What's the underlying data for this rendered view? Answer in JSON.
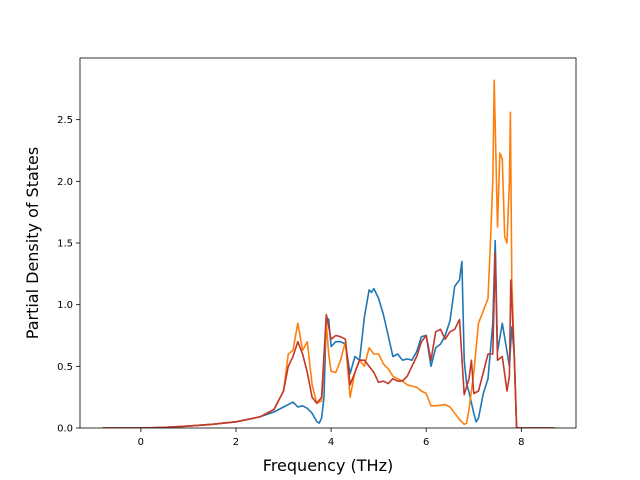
{
  "chart_data": {
    "type": "line",
    "title": "",
    "xlabel": "Frequency (THz)",
    "ylabel": "Partial Density of States",
    "xlim": [
      -1.28,
      9.15
    ],
    "ylim": [
      0,
      3.0
    ],
    "xticks": [
      0,
      2,
      4,
      6,
      8
    ],
    "yticks": [
      0.0,
      0.5,
      1.0,
      1.5,
      2.0,
      2.5
    ],
    "xtick_labels": [
      "0",
      "2",
      "4",
      "6",
      "8"
    ],
    "ytick_labels": [
      "0.0",
      "0.5",
      "1.0",
      "1.5",
      "2.0",
      "2.5"
    ],
    "grid": false,
    "legend": "none",
    "series": [
      {
        "color": "#1f77b4",
        "points": [
          [
            -0.8,
            0
          ],
          [
            0,
            0
          ],
          [
            0.5,
            0.005
          ],
          [
            1,
            0.015
          ],
          [
            1.5,
            0.03
          ],
          [
            2,
            0.05
          ],
          [
            2.5,
            0.09
          ],
          [
            2.8,
            0.13
          ],
          [
            3.0,
            0.17
          ],
          [
            3.1,
            0.19
          ],
          [
            3.2,
            0.21
          ],
          [
            3.3,
            0.17
          ],
          [
            3.4,
            0.18
          ],
          [
            3.5,
            0.16
          ],
          [
            3.6,
            0.12
          ],
          [
            3.7,
            0.05
          ],
          [
            3.75,
            0.04
          ],
          [
            3.8,
            0.08
          ],
          [
            3.85,
            0.25
          ],
          [
            3.9,
            0.9
          ],
          [
            3.95,
            0.88
          ],
          [
            4.0,
            0.66
          ],
          [
            4.1,
            0.7
          ],
          [
            4.2,
            0.7
          ],
          [
            4.3,
            0.68
          ],
          [
            4.4,
            0.44
          ],
          [
            4.5,
            0.58
          ],
          [
            4.6,
            0.55
          ],
          [
            4.7,
            0.9
          ],
          [
            4.8,
            1.12
          ],
          [
            4.85,
            1.1
          ],
          [
            4.9,
            1.13
          ],
          [
            5.0,
            1.05
          ],
          [
            5.1,
            0.92
          ],
          [
            5.2,
            0.75
          ],
          [
            5.3,
            0.58
          ],
          [
            5.4,
            0.6
          ],
          [
            5.5,
            0.55
          ],
          [
            5.6,
            0.56
          ],
          [
            5.7,
            0.55
          ],
          [
            5.8,
            0.62
          ],
          [
            5.9,
            0.74
          ],
          [
            6.0,
            0.75
          ],
          [
            6.1,
            0.5
          ],
          [
            6.2,
            0.65
          ],
          [
            6.3,
            0.68
          ],
          [
            6.4,
            0.75
          ],
          [
            6.5,
            0.87
          ],
          [
            6.6,
            1.15
          ],
          [
            6.7,
            1.2
          ],
          [
            6.75,
            1.35
          ],
          [
            6.8,
            0.55
          ],
          [
            6.85,
            0.36
          ],
          [
            6.9,
            0.29
          ],
          [
            7.0,
            0.12
          ],
          [
            7.05,
            0.05
          ],
          [
            7.1,
            0.08
          ],
          [
            7.2,
            0.28
          ],
          [
            7.3,
            0.4
          ],
          [
            7.4,
            0.85
          ],
          [
            7.45,
            1.52
          ],
          [
            7.5,
            0.62
          ],
          [
            7.6,
            0.85
          ],
          [
            7.7,
            0.62
          ],
          [
            7.75,
            0.5
          ],
          [
            7.8,
            0.82
          ],
          [
            7.85,
            0.6
          ],
          [
            7.9,
            0.0
          ],
          [
            8.7,
            0
          ]
        ]
      },
      {
        "color": "#ff7f0e",
        "points": [
          [
            -0.8,
            0
          ],
          [
            0,
            0
          ],
          [
            0.5,
            0.005
          ],
          [
            1,
            0.015
          ],
          [
            1.5,
            0.03
          ],
          [
            2,
            0.05
          ],
          [
            2.5,
            0.09
          ],
          [
            2.8,
            0.15
          ],
          [
            3.0,
            0.3
          ],
          [
            3.1,
            0.6
          ],
          [
            3.2,
            0.63
          ],
          [
            3.3,
            0.85
          ],
          [
            3.4,
            0.63
          ],
          [
            3.5,
            0.7
          ],
          [
            3.6,
            0.35
          ],
          [
            3.7,
            0.2
          ],
          [
            3.8,
            0.22
          ],
          [
            3.9,
            0.85
          ],
          [
            3.95,
            0.6
          ],
          [
            4.0,
            0.46
          ],
          [
            4.1,
            0.45
          ],
          [
            4.2,
            0.55
          ],
          [
            4.3,
            0.7
          ],
          [
            4.4,
            0.25
          ],
          [
            4.5,
            0.45
          ],
          [
            4.6,
            0.55
          ],
          [
            4.7,
            0.5
          ],
          [
            4.8,
            0.65
          ],
          [
            4.9,
            0.6
          ],
          [
            5.0,
            0.6
          ],
          [
            5.1,
            0.52
          ],
          [
            5.2,
            0.48
          ],
          [
            5.3,
            0.42
          ],
          [
            5.4,
            0.4
          ],
          [
            5.5,
            0.38
          ],
          [
            5.6,
            0.35
          ],
          [
            5.7,
            0.34
          ],
          [
            5.8,
            0.33
          ],
          [
            5.9,
            0.3
          ],
          [
            6.0,
            0.28
          ],
          [
            6.1,
            0.18
          ],
          [
            6.2,
            0.18
          ],
          [
            6.4,
            0.19
          ],
          [
            6.5,
            0.17
          ],
          [
            6.6,
            0.12
          ],
          [
            6.7,
            0.07
          ],
          [
            6.8,
            0.03
          ],
          [
            6.85,
            0.04
          ],
          [
            6.9,
            0.15
          ],
          [
            7.0,
            0.45
          ],
          [
            7.1,
            0.85
          ],
          [
            7.2,
            0.95
          ],
          [
            7.3,
            1.05
          ],
          [
            7.35,
            1.5
          ],
          [
            7.4,
            2.0
          ],
          [
            7.43,
            2.82
          ],
          [
            7.5,
            1.63
          ],
          [
            7.55,
            2.23
          ],
          [
            7.6,
            2.18
          ],
          [
            7.65,
            1.55
          ],
          [
            7.7,
            1.5
          ],
          [
            7.75,
            2.0
          ],
          [
            7.77,
            2.56
          ],
          [
            7.8,
            1.2
          ],
          [
            7.9,
            0.0
          ],
          [
            8.7,
            0
          ]
        ]
      },
      {
        "color": "#c0392b",
        "points": [
          [
            -0.8,
            0
          ],
          [
            0,
            0
          ],
          [
            0.5,
            0.005
          ],
          [
            1,
            0.015
          ],
          [
            1.5,
            0.03
          ],
          [
            2,
            0.05
          ],
          [
            2.5,
            0.09
          ],
          [
            2.8,
            0.15
          ],
          [
            3.0,
            0.3
          ],
          [
            3.1,
            0.5
          ],
          [
            3.2,
            0.58
          ],
          [
            3.3,
            0.7
          ],
          [
            3.4,
            0.6
          ],
          [
            3.5,
            0.45
          ],
          [
            3.6,
            0.25
          ],
          [
            3.7,
            0.2
          ],
          [
            3.8,
            0.25
          ],
          [
            3.9,
            0.92
          ],
          [
            4.0,
            0.72
          ],
          [
            4.1,
            0.75
          ],
          [
            4.2,
            0.74
          ],
          [
            4.3,
            0.72
          ],
          [
            4.4,
            0.35
          ],
          [
            4.5,
            0.45
          ],
          [
            4.6,
            0.55
          ],
          [
            4.7,
            0.55
          ],
          [
            4.8,
            0.5
          ],
          [
            4.9,
            0.45
          ],
          [
            5.0,
            0.37
          ],
          [
            5.1,
            0.38
          ],
          [
            5.2,
            0.36
          ],
          [
            5.3,
            0.4
          ],
          [
            5.4,
            0.38
          ],
          [
            5.5,
            0.38
          ],
          [
            5.6,
            0.42
          ],
          [
            5.7,
            0.5
          ],
          [
            5.8,
            0.58
          ],
          [
            5.9,
            0.7
          ],
          [
            6.0,
            0.75
          ],
          [
            6.1,
            0.55
          ],
          [
            6.2,
            0.78
          ],
          [
            6.3,
            0.8
          ],
          [
            6.4,
            0.72
          ],
          [
            6.5,
            0.78
          ],
          [
            6.6,
            0.8
          ],
          [
            6.7,
            0.88
          ],
          [
            6.8,
            0.27
          ],
          [
            6.9,
            0.4
          ],
          [
            6.95,
            0.55
          ],
          [
            7.0,
            0.28
          ],
          [
            7.1,
            0.3
          ],
          [
            7.2,
            0.45
          ],
          [
            7.3,
            0.6
          ],
          [
            7.4,
            0.6
          ],
          [
            7.45,
            1.42
          ],
          [
            7.5,
            0.55
          ],
          [
            7.6,
            0.58
          ],
          [
            7.7,
            0.3
          ],
          [
            7.75,
            0.42
          ],
          [
            7.78,
            1.2
          ],
          [
            7.85,
            0.6
          ],
          [
            7.9,
            0.0
          ],
          [
            8.7,
            0
          ]
        ]
      }
    ]
  }
}
